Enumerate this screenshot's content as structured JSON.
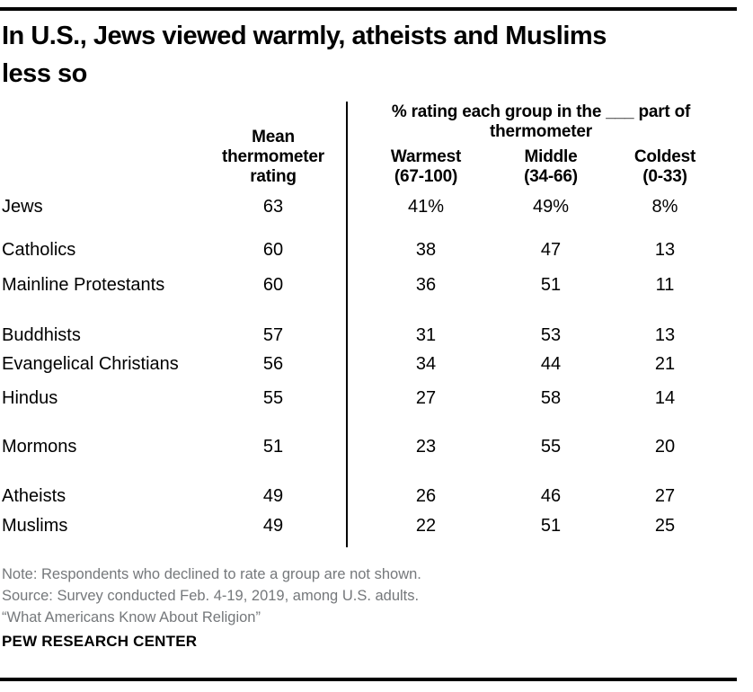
{
  "title": "In U.S., Jews viewed warmly, atheists and Muslims\nless so",
  "table": {
    "mean_header": "Mean\nthermometer\nrating",
    "span_header": "% rating each group in the ___ part of\nthermometer",
    "sub_headers": {
      "warmest": "Warmest\n(67-100)",
      "middle": "Middle\n(34-66)",
      "coldest": "Coldest\n(0-33)"
    },
    "rows": [
      {
        "group": "Jews",
        "mean": "63",
        "warmest": "41%",
        "middle": "49%",
        "coldest": "8%"
      },
      {
        "group": "Catholics",
        "mean": "60",
        "warmest": "38",
        "middle": "47",
        "coldest": "13"
      },
      {
        "group": "Mainline Protestants",
        "mean": "60",
        "warmest": "36",
        "middle": "51",
        "coldest": "11"
      },
      {
        "group": "Buddhists",
        "mean": "57",
        "warmest": "31",
        "middle": "53",
        "coldest": "13"
      },
      {
        "group": "Evangelical Christians",
        "mean": "56",
        "warmest": "34",
        "middle": "44",
        "coldest": "21"
      },
      {
        "group": "Hindus",
        "mean": "55",
        "warmest": "27",
        "middle": "58",
        "coldest": "14"
      },
      {
        "group": "Mormons",
        "mean": "51",
        "warmest": "23",
        "middle": "55",
        "coldest": "20"
      },
      {
        "group": "Atheists",
        "mean": "49",
        "warmest": "26",
        "middle": "46",
        "coldest": "27"
      },
      {
        "group": "Muslims",
        "mean": "49",
        "warmest": "22",
        "middle": "51",
        "coldest": "25"
      }
    ]
  },
  "notes": {
    "note": "Note: Respondents who declined to rate a group are not shown.",
    "source": "Source: Survey conducted Feb. 4-19, 2019, among U.S. adults.",
    "report": "“What Americans Know About Religion”"
  },
  "footer": {
    "brand": "PEW RESEARCH CENTER"
  },
  "colors": {
    "text": "#000000",
    "note_gray": "#75787b",
    "background": "#ffffff"
  },
  "chart_data": {
    "type": "table",
    "title": "In U.S., Jews viewed warmly, atheists and Muslims less so",
    "categories": [
      "Jews",
      "Catholics",
      "Mainline Protestants",
      "Buddhists",
      "Evangelical Christians",
      "Hindus",
      "Mormons",
      "Atheists",
      "Muslims"
    ],
    "series": [
      {
        "name": "Mean thermometer rating",
        "values": [
          63,
          60,
          60,
          57,
          56,
          55,
          51,
          49,
          49
        ]
      },
      {
        "name": "% rating in Warmest (67-100)",
        "values": [
          41,
          38,
          36,
          31,
          34,
          27,
          23,
          26,
          22
        ]
      },
      {
        "name": "% rating in Middle (34-66)",
        "values": [
          49,
          47,
          51,
          53,
          44,
          58,
          55,
          46,
          51
        ]
      },
      {
        "name": "% rating in Coldest (0-33)",
        "values": [
          8,
          13,
          11,
          13,
          21,
          14,
          20,
          27,
          25
        ]
      }
    ],
    "notes": "Respondents who declined to rate a group are not shown. Survey conducted Feb. 4-19, 2019, among U.S. adults."
  }
}
